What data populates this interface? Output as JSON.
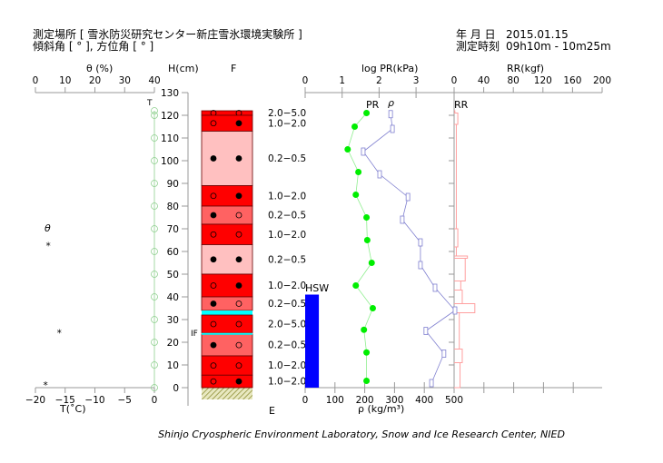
{
  "header": {
    "site_label": "測定場所 [ 雪氷防災研究センター新庄雪氷環境実験所 ]",
    "angle_label": "傾斜角 [ ° ], 方位角 [ ° ]",
    "date_label": "年 月 日",
    "date_value": "2015.01.15",
    "time_label": "測定時刻",
    "time_value": "09h10m - 10m25m"
  },
  "axes": {
    "theta_title": "θ (%)",
    "theta_ticks": [
      0,
      10,
      20,
      30,
      40
    ],
    "h_title": "H(cm)",
    "h_ticks": [
      0,
      10,
      20,
      30,
      40,
      50,
      60,
      70,
      80,
      90,
      100,
      110,
      120,
      130
    ],
    "f_title": "F",
    "logpr_title": "log PR(kPa)",
    "logpr_ticks": [
      0,
      1,
      2,
      3
    ],
    "rr_title": "RR(kgf)",
    "rr_ticks": [
      0,
      40,
      80,
      120,
      160,
      200
    ],
    "t_title": "T(˚C)",
    "t_ticks": [
      -20,
      -15,
      -10,
      -5,
      0
    ],
    "rho_title": "ρ (kg/m³)",
    "rho_ticks": [
      0,
      100,
      200,
      300,
      400,
      500
    ]
  },
  "labels": {
    "T": "T",
    "theta": "θ",
    "IF": "IF",
    "E": "E",
    "PR": "PR",
    "rho": "ρ",
    "RR": "RR",
    "HSW": "HSW"
  },
  "footer": "Shinjo Cryospheric Environment Laboratory, Snow and Ice Research Center, NIED",
  "colors": {
    "hard": "#ff0000",
    "medium": "#ff6262",
    "soft": "#ffc0c0",
    "ice": "#00ffff",
    "pr": "#00ee00",
    "rho": "#8080d0",
    "rr": "#ffa0a0",
    "hsw": "#0000ff"
  },
  "chart_data": {
    "type": "snow-profile",
    "temperature": {
      "h": [
        0,
        10,
        20,
        30,
        40,
        50,
        60,
        70,
        80,
        90,
        100,
        110,
        120,
        122
      ],
      "t": [
        0,
        0,
        0,
        0,
        0,
        0,
        0,
        0,
        0,
        0,
        0,
        0,
        0,
        0
      ]
    },
    "theta": {
      "h": [
        63.5,
        25,
        2
      ],
      "theta": [
        4.3,
        8,
        3.4
      ]
    },
    "layers": [
      {
        "top": 122,
        "bottom": 120,
        "hardness": "2.0-5.0",
        "grain": [
          "open",
          "open"
        ],
        "type": "hard"
      },
      {
        "top": 120,
        "bottom": 113,
        "hardness": "1.0-2.0",
        "grain": [
          "open",
          "filled"
        ],
        "type": "hard"
      },
      {
        "top": 113,
        "bottom": 89,
        "hardness": "0.2-0.5",
        "grain": [
          "filled",
          "filled"
        ],
        "type": "soft"
      },
      {
        "top": 89,
        "bottom": 80,
        "hardness": "1.0-2.0",
        "grain": [
          "open",
          "filled"
        ],
        "type": "hard"
      },
      {
        "top": 80,
        "bottom": 72,
        "hardness": "0.2-0.5",
        "grain": [
          "filled",
          "open"
        ],
        "type": "medium"
      },
      {
        "top": 72,
        "bottom": 63,
        "hardness": "1.0-2.0",
        "grain": [
          "open",
          "open"
        ],
        "type": "hard"
      },
      {
        "top": 63,
        "bottom": 50,
        "hardness": "0.2-0.5",
        "grain": [
          "filled",
          "filled"
        ],
        "type": "soft"
      },
      {
        "top": 50,
        "bottom": 40,
        "hardness": "1.0-2.0",
        "grain": [
          "open",
          "filled"
        ],
        "type": "hard"
      },
      {
        "top": 40,
        "bottom": 34,
        "hardness": "0.2-0.5",
        "grain": [
          "filled",
          "open"
        ],
        "type": "medium"
      },
      {
        "top": 34,
        "bottom": 32,
        "hardness": "",
        "grain": [],
        "type": "ice"
      },
      {
        "top": 32,
        "bottom": 24,
        "hardness": "2.0-5.0",
        "grain": [
          "open",
          "open"
        ],
        "type": "hard"
      },
      {
        "top": 23.5,
        "bottom": 14,
        "hardness": "0.2-0.5",
        "grain": [
          "filled",
          "open"
        ],
        "type": "medium"
      },
      {
        "top": 14,
        "bottom": 5.5,
        "hardness": "1.0-2.0",
        "grain": [
          "open",
          "open"
        ],
        "type": "hard"
      },
      {
        "top": 5.5,
        "bottom": 0,
        "hardness": "1.0-2.0",
        "grain": [
          "open",
          "filled"
        ],
        "type": "hard"
      }
    ],
    "ice_film_h": 23.7,
    "log_pr": {
      "h": [
        121,
        115,
        105,
        95,
        85,
        75,
        65,
        55,
        45,
        35,
        25.5,
        15.5,
        3
      ],
      "value": [
        1.66,
        1.34,
        1.15,
        1.44,
        1.37,
        1.66,
        1.68,
        1.8,
        1.37,
        1.83,
        1.59,
        1.66,
        1.66
      ]
    },
    "density": {
      "h": [
        120.5,
        114,
        104,
        94,
        84,
        74,
        64,
        54,
        44,
        34,
        25,
        15,
        2
      ],
      "value": [
        287,
        293,
        195,
        250,
        345,
        326,
        387,
        387,
        436,
        503,
        405,
        466,
        424
      ]
    },
    "rr": [
      {
        "top": 122,
        "bottom": 121,
        "value": 1
      },
      {
        "top": 121,
        "bottom": 116,
        "value": 5
      },
      {
        "top": 116,
        "bottom": 70,
        "value": 3
      },
      {
        "top": 70,
        "bottom": 62,
        "value": 5
      },
      {
        "top": 62,
        "bottom": 58,
        "value": 3
      },
      {
        "top": 58,
        "bottom": 57,
        "value": 18
      },
      {
        "top": 57,
        "bottom": 47,
        "value": 15
      },
      {
        "top": 47,
        "bottom": 43,
        "value": 9
      },
      {
        "top": 43,
        "bottom": 37,
        "value": 11
      },
      {
        "top": 37,
        "bottom": 33,
        "value": 28
      },
      {
        "top": 33,
        "bottom": 17,
        "value": 7
      },
      {
        "top": 17,
        "bottom": 11,
        "value": 11
      },
      {
        "top": 11,
        "bottom": 0,
        "value": 8
      }
    ],
    "hsw": {
      "height": 41,
      "value": 46
    }
  }
}
